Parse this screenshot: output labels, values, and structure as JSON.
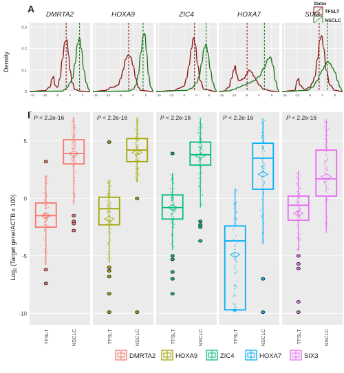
{
  "panel_a_label": "A",
  "panel_b_label": "B",
  "legend_status": {
    "title": "Status",
    "items": [
      {
        "label": "TFSLT",
        "color": "#8b1a1a"
      },
      {
        "label": "NSCLC",
        "color": "#1e7a1e"
      }
    ]
  },
  "density": {
    "ylabel": "Density",
    "yticks": [
      0,
      0.1,
      0.2,
      0.3
    ],
    "xticks": [
      -15,
      -10,
      -5,
      0,
      5
    ],
    "xlim": [
      -16,
      8
    ],
    "ylim": [
      0,
      0.32
    ]
  },
  "box": {
    "ylabel_prefix": "Log",
    "ylabel_sub": "2",
    "ylabel_rest": " (Target gene/ACTB x 100)",
    "yticks": [
      -10,
      -5,
      0,
      5
    ],
    "ylim": [
      -11,
      7.5
    ],
    "pvalue_prefix": "P",
    "pvalue_rest": " < 2.2e-16"
  },
  "chart_data": [
    {
      "type": "area",
      "panel": "A",
      "series_names": [
        "TFSLT",
        "NSCLC"
      ],
      "facets": [
        {
          "name": "DMRTA2",
          "tfslt_mean": -1.5,
          "nsclc_mean": 3.8,
          "tfslt": [
            [
              -16,
              0
            ],
            [
              -10,
              0.004
            ],
            [
              -8,
              0.02
            ],
            [
              -7,
              0.06
            ],
            [
              -6.5,
              0.07
            ],
            [
              -6,
              0.03
            ],
            [
              -5,
              0.02
            ],
            [
              -4,
              0.06
            ],
            [
              -3,
              0.15
            ],
            [
              -2,
              0.23
            ],
            [
              -1.2,
              0.24
            ],
            [
              -0.5,
              0.17
            ],
            [
              0,
              0.1
            ],
            [
              1,
              0.04
            ],
            [
              2,
              0.01
            ],
            [
              4,
              0.002
            ],
            [
              8,
              0
            ]
          ],
          "nsclc": [
            [
              -16,
              0
            ],
            [
              -3,
              0.002
            ],
            [
              -2,
              0.01
            ],
            [
              -1,
              0.02
            ],
            [
              0,
              0.04
            ],
            [
              1,
              0.06
            ],
            [
              2,
              0.13
            ],
            [
              3,
              0.22
            ],
            [
              3.8,
              0.25
            ],
            [
              4.5,
              0.2
            ],
            [
              5.5,
              0.1
            ],
            [
              6.5,
              0.04
            ],
            [
              7.5,
              0.01
            ],
            [
              8,
              0
            ]
          ]
        },
        {
          "name": "HOXA9",
          "tfslt_mean": -1.8,
          "nsclc_mean": 3.9,
          "tfslt": [
            [
              -16,
              0
            ],
            [
              -11,
              0.005
            ],
            [
              -10,
              0.01
            ],
            [
              -9,
              0.02
            ],
            [
              -8,
              0.02
            ],
            [
              -6,
              0.03
            ],
            [
              -5,
              0.06
            ],
            [
              -4,
              0.1
            ],
            [
              -3,
              0.15
            ],
            [
              -2,
              0.17
            ],
            [
              -1,
              0.16
            ],
            [
              0,
              0.12
            ],
            [
              1,
              0.06
            ],
            [
              2,
              0.02
            ],
            [
              3,
              0.005
            ],
            [
              8,
              0
            ]
          ],
          "nsclc": [
            [
              -16,
              0
            ],
            [
              -2,
              0.002
            ],
            [
              0,
              0.01
            ],
            [
              1,
              0.03
            ],
            [
              2,
              0.08
            ],
            [
              3,
              0.18
            ],
            [
              4,
              0.26
            ],
            [
              4.6,
              0.27
            ],
            [
              5.3,
              0.18
            ],
            [
              6,
              0.08
            ],
            [
              7,
              0.02
            ],
            [
              8,
              0
            ]
          ]
        },
        {
          "name": "ZIC4",
          "tfslt_mean": -0.8,
          "nsclc_mean": 3.8,
          "tfslt": [
            [
              -16,
              0
            ],
            [
              -9,
              0.004
            ],
            [
              -7,
              0.015
            ],
            [
              -6,
              0.02
            ],
            [
              -5,
              0.025
            ],
            [
              -4,
              0.06
            ],
            [
              -3,
              0.12
            ],
            [
              -2,
              0.2
            ],
            [
              -1.2,
              0.25
            ],
            [
              -0.5,
              0.22
            ],
            [
              0.5,
              0.12
            ],
            [
              1.5,
              0.05
            ],
            [
              3,
              0.01
            ],
            [
              8,
              0
            ]
          ],
          "nsclc": [
            [
              -16,
              0
            ],
            [
              -4,
              0.005
            ],
            [
              -2,
              0.015
            ],
            [
              0,
              0.04
            ],
            [
              1,
              0.07
            ],
            [
              2,
              0.13
            ],
            [
              3,
              0.2
            ],
            [
              3.8,
              0.22
            ],
            [
              4.5,
              0.18
            ],
            [
              5.5,
              0.1
            ],
            [
              6.5,
              0.04
            ],
            [
              7.5,
              0.01
            ],
            [
              8,
              0
            ]
          ]
        },
        {
          "name": "HOXA7",
          "tfslt_mean": -4.8,
          "nsclc_mean": 2.1,
          "tfslt": [
            [
              -16,
              0
            ],
            [
              -14,
              0.002
            ],
            [
              -12,
              0.02
            ],
            [
              -11,
              0.06
            ],
            [
              -10,
              0.1
            ],
            [
              -9.5,
              0.12
            ],
            [
              -9,
              0.08
            ],
            [
              -8,
              0.05
            ],
            [
              -6,
              0.06
            ],
            [
              -5,
              0.08
            ],
            [
              -4,
              0.1
            ],
            [
              -3,
              0.09
            ],
            [
              -2,
              0.07
            ],
            [
              -1,
              0.05
            ],
            [
              0,
              0.03
            ],
            [
              2,
              0.01
            ],
            [
              5,
              0.002
            ],
            [
              8,
              0
            ]
          ],
          "nsclc": [
            [
              -16,
              0
            ],
            [
              -12,
              0.003
            ],
            [
              -10,
              0.01
            ],
            [
              -8,
              0.02
            ],
            [
              -6,
              0.03
            ],
            [
              -4,
              0.04
            ],
            [
              -2,
              0.05
            ],
            [
              0,
              0.07
            ],
            [
              2,
              0.11
            ],
            [
              3.5,
              0.15
            ],
            [
              4.5,
              0.16
            ],
            [
              5.5,
              0.12
            ],
            [
              6.5,
              0.05
            ],
            [
              7.5,
              0.01
            ],
            [
              8,
              0
            ]
          ]
        },
        {
          "name": "SIX3",
          "tfslt_mean": -1.3,
          "nsclc_mean": 1.9,
          "tfslt": [
            [
              -16,
              0
            ],
            [
              -11,
              0.005
            ],
            [
              -10,
              0.05
            ],
            [
              -9.5,
              0.06
            ],
            [
              -9,
              0.03
            ],
            [
              -7,
              0.01
            ],
            [
              -5,
              0.02
            ],
            [
              -4,
              0.04
            ],
            [
              -3,
              0.07
            ],
            [
              -2,
              0.15
            ],
            [
              -1,
              0.24
            ],
            [
              -0.3,
              0.26
            ],
            [
              0.5,
              0.2
            ],
            [
              1.5,
              0.1
            ],
            [
              3,
              0.03
            ],
            [
              5,
              0.005
            ],
            [
              8,
              0
            ]
          ],
          "nsclc": [
            [
              -16,
              0
            ],
            [
              -6,
              0.005
            ],
            [
              -4,
              0.02
            ],
            [
              -2,
              0.05
            ],
            [
              -1,
              0.08
            ],
            [
              0,
              0.1
            ],
            [
              1,
              0.12
            ],
            [
              2,
              0.14
            ],
            [
              3,
              0.13
            ],
            [
              4,
              0.11
            ],
            [
              5,
              0.09
            ],
            [
              6,
              0.05
            ],
            [
              7,
              0.02
            ],
            [
              8,
              0
            ]
          ]
        }
      ]
    },
    {
      "type": "box",
      "panel": "B",
      "categories": [
        "TFSLT",
        "NSCLC"
      ],
      "genes": [
        {
          "name": "DMRTA2",
          "color": "#f8766d",
          "boxes": [
            {
              "q1": -2.5,
              "median": -1.5,
              "q3": -0.4,
              "wlo": -5.8,
              "whi": 2.0,
              "mean": -1.5,
              "outliers": [
                3.2,
                -6.2,
                -7.4
              ]
            },
            {
              "q1": 3.0,
              "median": 3.9,
              "q3": 5.1,
              "wlo": -0.5,
              "whi": 7.0,
              "mean": 3.9,
              "outliers": [
                -1.5,
                -2.0,
                -2.2,
                -2.8
              ]
            }
          ]
        },
        {
          "name": "HOXA9",
          "color": "#a3a500",
          "boxes": [
            {
              "q1": -2.3,
              "median": -0.9,
              "q3": 0.1,
              "wlo": -5.6,
              "whi": 1.5,
              "mean": -1.8,
              "outliers": [
                4.9,
                -6.0,
                -6.3,
                -6.8,
                -8.3,
                -9.9
              ]
            },
            {
              "q1": 3.2,
              "median": 4.2,
              "q3": 5.2,
              "wlo": 1.4,
              "whi": 7.0,
              "mean": 4.0,
              "outliers": [
                0.0,
                -9.9
              ]
            }
          ]
        },
        {
          "name": "ZIC4",
          "color": "#00bf7d",
          "boxes": [
            {
              "q1": -1.8,
              "median": -0.8,
              "q3": 0.3,
              "wlo": -4.5,
              "whi": 2.2,
              "mean": -0.8,
              "outliers": [
                3.9,
                -5.0,
                -5.3,
                -6.4,
                -7.0,
                -8.3
              ]
            },
            {
              "q1": 2.9,
              "median": 3.8,
              "q3": 4.9,
              "wlo": -0.8,
              "whi": 7.0,
              "mean": 3.7,
              "outliers": [
                -2.0,
                -2.3,
                -2.5,
                -3.7
              ]
            }
          ]
        },
        {
          "name": "HOXA7",
          "color": "#00b0f6",
          "boxes": [
            {
              "q1": -9.7,
              "median": -3.7,
              "q3": -2.4,
              "wlo": -9.9,
              "whi": 0.8,
              "mean": -4.9,
              "outliers": []
            },
            {
              "q1": 0.8,
              "median": 3.5,
              "q3": 4.8,
              "wlo": -4.0,
              "whi": 6.9,
              "mean": 2.1,
              "outliers": [
                -7.0,
                -9.9
              ]
            }
          ]
        },
        {
          "name": "SIX3",
          "color": "#e76bf3",
          "boxes": [
            {
              "q1": -1.9,
              "median": -0.6,
              "q3": 0.2,
              "wlo": -4.6,
              "whi": 2.4,
              "mean": -1.3,
              "outliers": [
                -5.0,
                -5.7,
                -6.1,
                -9.0,
                -9.9
              ]
            },
            {
              "q1": 0.2,
              "median": 1.7,
              "q3": 4.2,
              "wlo": -3.0,
              "whi": 6.8,
              "mean": 1.9,
              "outliers": []
            }
          ]
        }
      ]
    }
  ]
}
